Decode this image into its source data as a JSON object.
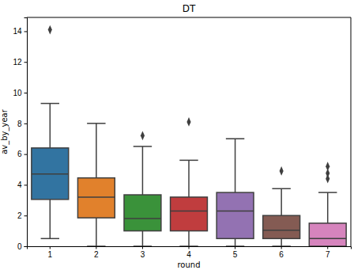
{
  "chart_data": {
    "type": "box",
    "title": "DT",
    "x_label": "round",
    "y_label": "av_by_year",
    "categories": [
      "1",
      "2",
      "3",
      "4",
      "5",
      "6",
      "7"
    ],
    "boxes": [
      {
        "low": 0.5,
        "q1": 3.05,
        "median": 4.7,
        "q3": 6.4,
        "high": 9.3,
        "outliers": [
          14.1
        ]
      },
      {
        "low": 0,
        "q1": 1.85,
        "median": 3.2,
        "q3": 4.45,
        "high": 8.0,
        "outliers": []
      },
      {
        "low": 0,
        "q1": 1.0,
        "median": 1.8,
        "q3": 3.35,
        "high": 6.5,
        "outliers": [
          7.2
        ]
      },
      {
        "low": 0,
        "q1": 1.0,
        "median": 2.3,
        "q3": 3.2,
        "high": 5.6,
        "outliers": [
          8.1
        ]
      },
      {
        "low": 0,
        "q1": 0.5,
        "median": 2.3,
        "q3": 3.5,
        "high": 7.0,
        "outliers": []
      },
      {
        "low": 0,
        "q1": 0.5,
        "median": 1.05,
        "q3": 2.0,
        "high": 3.75,
        "outliers": [
          4.9
        ]
      },
      {
        "low": 0,
        "q1": 0,
        "median": 0.5,
        "q3": 1.5,
        "high": 3.5,
        "outliers": [
          5.2,
          4.75,
          4.4
        ]
      }
    ],
    "colors": [
      "#3274a1",
      "#e1812c",
      "#3a923a",
      "#c03d3e",
      "#9372b2",
      "#845b53",
      "#d684bd"
    ],
    "ylim": [
      0,
      14.9
    ],
    "yticks": [
      0,
      2,
      4,
      6,
      8,
      10,
      12,
      14
    ]
  }
}
